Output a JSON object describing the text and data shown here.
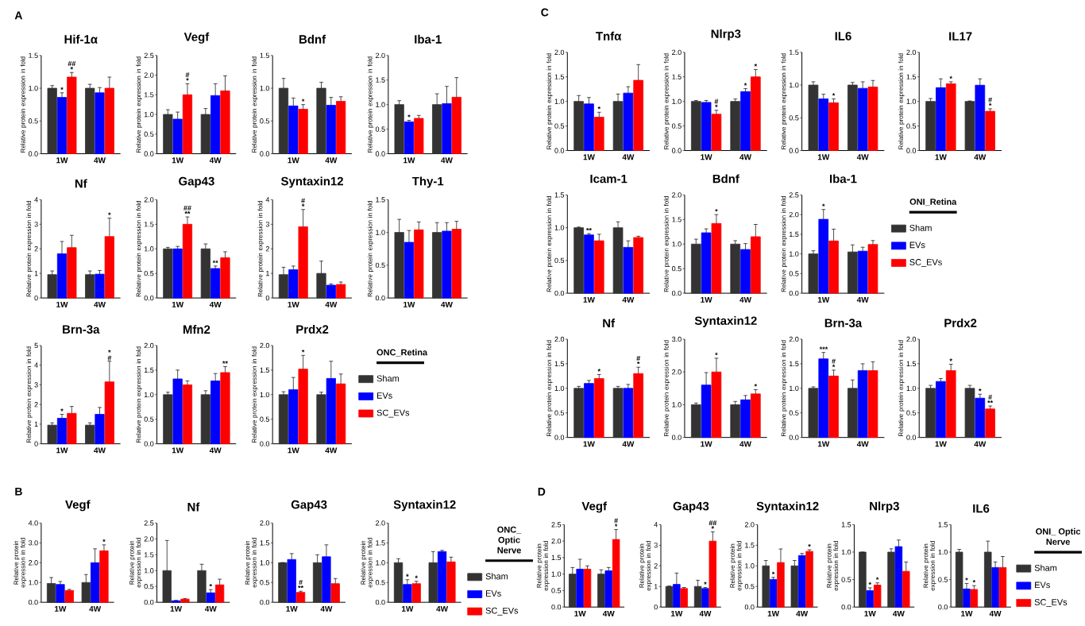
{
  "chart_data": [
    {
      "type": "bar",
      "title": "Hif-1α",
      "ylabel": "Relative protein expression in fold",
      "annotations": [
        "A"
      ],
      "categories": [
        "1W",
        "4W"
      ],
      "ylim": [
        0,
        1.5
      ],
      "yticks": [
        {
          "value": 0,
          "label": "0.0"
        },
        {
          "value": 0.5,
          "label": "0.5"
        },
        {
          "value": 1,
          "label": "1.0"
        },
        {
          "value": 1.5,
          "label": "1.5"
        }
      ],
      "series": [
        {
          "color": "#333333",
          "values": [
            1.0,
            1.0
          ],
          "errors": [
            0.04,
            0.06
          ]
        },
        {
          "color": "#0000ff",
          "values": [
            0.86,
            0.93
          ],
          "errors": [
            0.07,
            0.08
          ],
          "value_labels": [
            "*",
            null
          ]
        },
        {
          "color": "#ff0000",
          "values": [
            1.17,
            1.0
          ],
          "errors": [
            0.07,
            0.17
          ],
          "value_labels": [
            "## *",
            null
          ]
        }
      ]
    },
    {
      "type": "bar",
      "title": "Vegf",
      "ylabel": "Relative protein expression in fold",
      "categories": [
        "1W",
        "4W"
      ],
      "ylim": [
        0,
        2.5
      ],
      "yticks": [
        {
          "value": 0,
          "label": "0.0"
        },
        {
          "value": 0.5,
          "label": "0.5"
        },
        {
          "value": 1,
          "label": "1.0"
        },
        {
          "value": 1.5,
          "label": "1.5"
        },
        {
          "value": 2,
          "label": "2.0"
        },
        {
          "value": 2.5,
          "label": "2.5"
        }
      ],
      "series": [
        {
          "color": "#333333",
          "values": [
            1.0,
            1.0
          ],
          "errors": [
            0.12,
            0.15
          ]
        },
        {
          "color": "#0000ff",
          "values": [
            0.88,
            1.48
          ],
          "errors": [
            0.18,
            0.3
          ]
        },
        {
          "color": "#ff0000",
          "values": [
            1.5,
            1.6
          ],
          "errors": [
            0.28,
            0.38
          ],
          "value_labels": [
            "# *",
            null
          ]
        }
      ]
    },
    {
      "type": "bar",
      "title": "Bdnf",
      "ylabel": "Relative protein expression in fold",
      "categories": [
        "1W",
        "4W"
      ],
      "ylim": [
        0,
        1.5
      ],
      "yticks": [
        {
          "value": 0,
          "label": "0.0"
        },
        {
          "value": 0.5,
          "label": "0.5"
        },
        {
          "value": 1,
          "label": "1.0"
        },
        {
          "value": 1.5,
          "label": "1.5"
        }
      ],
      "series": [
        {
          "color": "#333333",
          "values": [
            1.0,
            1.0
          ],
          "errors": [
            0.15,
            0.09
          ]
        },
        {
          "color": "#0000ff",
          "values": [
            0.73,
            0.74
          ],
          "errors": [
            0.12,
            0.12
          ]
        },
        {
          "color": "#ff0000",
          "values": [
            0.68,
            0.8
          ],
          "errors": [
            0.07,
            0.07
          ],
          "value_labels": [
            "*",
            null
          ]
        }
      ]
    },
    {
      "type": "bar",
      "title": "Iba-1",
      "ylabel": "Relative protein expression in fold",
      "categories": [
        "1W",
        "4W"
      ],
      "ylim": [
        0,
        2.0
      ],
      "yticks": [
        {
          "value": 0,
          "label": "0.0"
        },
        {
          "value": 0.5,
          "label": "0.5"
        },
        {
          "value": 1,
          "label": "1.0"
        },
        {
          "value": 1.5,
          "label": "1.5"
        },
        {
          "value": 2,
          "label": "2.0"
        }
      ],
      "series": [
        {
          "color": "#333333",
          "values": [
            1.0,
            1.0
          ],
          "errors": [
            0.08,
            0.22
          ]
        },
        {
          "color": "#0000ff",
          "values": [
            0.65,
            1.02
          ],
          "errors": [
            0.03,
            0.35
          ],
          "value_labels": [
            "*",
            null
          ]
        },
        {
          "color": "#ff0000",
          "values": [
            0.72,
            1.15
          ],
          "errors": [
            0.06,
            0.4
          ]
        }
      ]
    },
    {
      "type": "bar",
      "title": "Nf",
      "ylabel": "Relative protein expression in fold",
      "categories": [
        "1W",
        "4W"
      ],
      "ylim": [
        0,
        4
      ],
      "yticks": [
        0,
        1,
        2,
        3,
        4
      ],
      "series": [
        {
          "color": "#333333",
          "values": [
            0.95,
            0.95
          ],
          "errors": [
            0.15,
            0.15
          ]
        },
        {
          "color": "#0000ff",
          "values": [
            1.8,
            0.97
          ],
          "errors": [
            0.5,
            0.15
          ]
        },
        {
          "color": "#ff0000",
          "values": [
            2.05,
            2.5
          ],
          "errors": [
            0.5,
            0.75
          ],
          "value_labels": [
            null,
            "*"
          ]
        }
      ]
    },
    {
      "type": "bar",
      "title": "Gap43",
      "ylabel": "Relative protein expression in fold",
      "categories": [
        "1W",
        "4W"
      ],
      "ylim": [
        0,
        2.0
      ],
      "yticks": [
        {
          "value": 0,
          "label": "0.0"
        },
        {
          "value": 0.5,
          "label": "0.5"
        },
        {
          "value": 1,
          "label": "1.0"
        },
        {
          "value": 1.5,
          "label": "1.5"
        },
        {
          "value": 2,
          "label": "2.0"
        }
      ],
      "series": [
        {
          "color": "#333333",
          "values": [
            1.0,
            1.0
          ],
          "errors": [
            0.03,
            0.1
          ]
        },
        {
          "color": "#0000ff",
          "values": [
            1.0,
            0.6
          ],
          "errors": [
            0.05,
            0.05
          ],
          "value_labels": [
            null,
            "**"
          ]
        },
        {
          "color": "#ff0000",
          "values": [
            1.5,
            0.82
          ],
          "errors": [
            0.15,
            0.12
          ],
          "value_labels": [
            "## **",
            null
          ]
        }
      ]
    },
    {
      "type": "bar",
      "title": "Syntaxin12",
      "ylabel": "Relative protein expression in fold",
      "categories": [
        "1W",
        "4W"
      ],
      "ylim": [
        0,
        4
      ],
      "yticks": [
        0,
        1,
        2,
        3,
        4
      ],
      "series": [
        {
          "color": "#333333",
          "values": [
            0.95,
            1.0
          ],
          "errors": [
            0.3,
            0.5
          ]
        },
        {
          "color": "#0000ff",
          "values": [
            1.15,
            0.52
          ],
          "errors": [
            0.15,
            0.05
          ]
        },
        {
          "color": "#ff0000",
          "values": [
            2.9,
            0.55
          ],
          "errors": [
            0.7,
            0.1
          ],
          "value_labels": [
            "# *",
            null
          ]
        }
      ]
    },
    {
      "type": "bar",
      "title": "Thy-1",
      "ylabel": "Relative protein expression in fold",
      "categories": [
        "1W",
        "4W"
      ],
      "ylim": [
        0,
        1.5
      ],
      "yticks": [
        {
          "value": 0,
          "label": "0.0"
        },
        {
          "value": 0.5,
          "label": "0.5"
        },
        {
          "value": 1,
          "label": "1.0"
        },
        {
          "value": 1.5,
          "label": "1.5"
        }
      ],
      "series": [
        {
          "color": "#333333",
          "values": [
            1.0,
            1.0
          ],
          "errors": [
            0.2,
            0.15
          ]
        },
        {
          "color": "#0000ff",
          "values": [
            0.85,
            1.02
          ],
          "errors": [
            0.18,
            0.13
          ]
        },
        {
          "color": "#ff0000",
          "values": [
            1.04,
            1.05
          ],
          "errors": [
            0.12,
            0.12
          ]
        }
      ]
    },
    {
      "type": "bar",
      "title": "Brn-3a",
      "ylabel": "Relative protein expression in fold",
      "categories": [
        "1W",
        "4W"
      ],
      "ylim": [
        0,
        5
      ],
      "yticks": [
        0,
        1,
        2,
        3,
        4,
        5
      ],
      "series": [
        {
          "color": "#333333",
          "values": [
            0.95,
            0.95
          ],
          "errors": [
            0.12,
            0.12
          ]
        },
        {
          "color": "#0000ff",
          "values": [
            1.3,
            1.5
          ],
          "errors": [
            0.2,
            0.35
          ],
          "value_labels": [
            "*",
            null
          ]
        },
        {
          "color": "#ff0000",
          "values": [
            1.55,
            3.15
          ],
          "errors": [
            0.35,
            1.05
          ],
          "value_labels": [
            null,
            "* #"
          ]
        }
      ]
    },
    {
      "type": "bar",
      "title": "Mfn2",
      "ylabel": "Relative protein expression in fold",
      "categories": [
        "1W",
        "4W"
      ],
      "ylim": [
        0,
        2.0
      ],
      "yticks": [
        {
          "value": 0,
          "label": "0.0"
        },
        {
          "value": 0.5,
          "label": "0.5"
        },
        {
          "value": 1,
          "label": "1.0"
        },
        {
          "value": 1.5,
          "label": "1.5"
        },
        {
          "value": 2,
          "label": "2.0"
        }
      ],
      "series": [
        {
          "color": "#333333",
          "values": [
            1.0,
            1.0
          ],
          "errors": [
            0.05,
            0.08
          ]
        },
        {
          "color": "#0000ff",
          "values": [
            1.32,
            1.28
          ],
          "errors": [
            0.18,
            0.15
          ]
        },
        {
          "color": "#ff0000",
          "values": [
            1.2,
            1.45
          ],
          "errors": [
            0.08,
            0.12
          ],
          "value_labels": [
            null,
            "**"
          ]
        }
      ]
    },
    {
      "type": "bar",
      "title": "Prdx2",
      "ylabel": "Relative protein expression in fold",
      "categories": [
        "1W",
        "4W"
      ],
      "ylim": [
        0,
        2.0
      ],
      "yticks": [
        {
          "value": 0,
          "label": "0.0"
        },
        {
          "value": 0.5,
          "label": "0.5"
        },
        {
          "value": 1,
          "label": "1.0"
        },
        {
          "value": 1.5,
          "label": "1.5"
        },
        {
          "value": 2,
          "label": "2.0"
        }
      ],
      "legend": "right",
      "legend_title": "ONC_Retina",
      "series": [
        {
          "name": "Sham",
          "color": "#333333",
          "values": [
            1.0,
            1.0
          ],
          "errors": [
            0.06,
            0.05
          ]
        },
        {
          "name": "EVs",
          "color": "#0000ff",
          "values": [
            1.1,
            1.33
          ],
          "errors": [
            0.25,
            0.35
          ]
        },
        {
          "name": "SC_EVs",
          "color": "#ff0000",
          "values": [
            1.52,
            1.22
          ],
          "errors": [
            0.28,
            0.2
          ],
          "value_labels": [
            "*",
            null
          ]
        }
      ]
    },
    {
      "type": "bar",
      "title": "Vegf",
      "ylabel": "Relative protein expression in fold",
      "annotations": [
        "B"
      ],
      "categories": [
        "1W",
        "4W"
      ],
      "ylim": [
        0,
        4.0
      ],
      "yticks": [
        {
          "value": 0,
          "label": "0.0"
        },
        {
          "value": 1,
          "label": "1.0"
        },
        {
          "value": 2,
          "label": "2.0"
        },
        {
          "value": 3,
          "label": "3.0"
        },
        {
          "value": 4,
          "label": "4.0"
        }
      ],
      "series": [
        {
          "color": "#333333",
          "values": [
            0.95,
            1.0
          ],
          "errors": [
            0.3,
            0.4
          ]
        },
        {
          "color": "#0000ff",
          "values": [
            0.9,
            2.0
          ],
          "errors": [
            0.15,
            0.7
          ]
        },
        {
          "color": "#ff0000",
          "values": [
            0.6,
            2.6
          ],
          "errors": [
            0.05,
            0.3
          ],
          "value_labels": [
            null,
            "*"
          ]
        }
      ]
    },
    {
      "type": "bar",
      "title": "Nf",
      "ylabel": "Relative protein expression in fold",
      "categories": [
        "1W",
        "4W"
      ],
      "ylim": [
        0,
        2.5
      ],
      "yticks": [
        {
          "value": 0,
          "label": "0.0"
        },
        {
          "value": 0.5,
          "label": "0.5"
        },
        {
          "value": 1,
          "label": "1.0"
        },
        {
          "value": 1.5,
          "label": "1.5"
        },
        {
          "value": 2,
          "label": "2.0"
        },
        {
          "value": 2.5,
          "label": "2.5"
        }
      ],
      "series": [
        {
          "color": "#333333",
          "values": [
            1.0,
            1.0
          ],
          "errors": [
            0.95,
            0.2
          ]
        },
        {
          "color": "#0000ff",
          "values": [
            0.05,
            0.3
          ],
          "errors": [
            0.01,
            0.1
          ],
          "value_labels": [
            null,
            "*"
          ]
        },
        {
          "color": "#ff0000",
          "values": [
            0.1,
            0.55
          ],
          "errors": [
            0.02,
            0.18
          ]
        }
      ]
    },
    {
      "type": "bar",
      "title": "Gap43",
      "ylabel": "Relative protein expression in fold",
      "categories": [
        "1W",
        "4W"
      ],
      "ylim": [
        0,
        2.0
      ],
      "yticks": [
        {
          "value": 0,
          "label": "0.0"
        },
        {
          "value": 0.5,
          "label": "0.5"
        },
        {
          "value": 1,
          "label": "1.0"
        },
        {
          "value": 1.5,
          "label": "1.5"
        },
        {
          "value": 2,
          "label": "2.0"
        }
      ],
      "series": [
        {
          "color": "#333333",
          "values": [
            1.0,
            1.0
          ],
          "errors": [
            0.0,
            0.2
          ]
        },
        {
          "color": "#0000ff",
          "values": [
            1.08,
            1.15
          ],
          "errors": [
            0.15,
            0.3
          ]
        },
        {
          "color": "#ff0000",
          "values": [
            0.25,
            0.47
          ],
          "errors": [
            0.03,
            0.13
          ],
          "value_labels": [
            "# **",
            null
          ]
        }
      ]
    },
    {
      "type": "bar",
      "title": "Syntaxin12",
      "ylabel": "Relative protein expression in fold",
      "categories": [
        "1W",
        "4W"
      ],
      "ylim": [
        0,
        2.0
      ],
      "yticks": [
        {
          "value": 0,
          "label": "0.0"
        },
        {
          "value": 0.5,
          "label": "0.5"
        },
        {
          "value": 1,
          "label": "1.0"
        },
        {
          "value": 1.5,
          "label": "1.5"
        },
        {
          "value": 2,
          "label": "2.0"
        }
      ],
      "legend": "right",
      "legend_title": "ONC_ Optic Nerve",
      "series": [
        {
          "name": "Sham",
          "color": "#333333",
          "values": [
            1.0,
            1.0
          ],
          "errors": [
            0.1,
            0.28
          ]
        },
        {
          "name": "EVs",
          "color": "#0000ff",
          "values": [
            0.45,
            1.28
          ],
          "errors": [
            0.12,
            0.03
          ],
          "value_labels": [
            "*",
            null
          ]
        },
        {
          "name": "SC_EVs",
          "color": "#ff0000",
          "values": [
            0.47,
            1.02
          ],
          "errors": [
            0.06,
            0.12
          ],
          "value_labels": [
            "*",
            null
          ]
        }
      ]
    },
    {
      "type": "bar",
      "title": "Tnfα",
      "ylabel": "Relative protein expression in fold",
      "annotations": [
        "C"
      ],
      "categories": [
        "1W",
        "4W"
      ],
      "ylim": [
        0,
        2.0
      ],
      "yticks": [
        {
          "value": 0,
          "label": "0.0"
        },
        {
          "value": 0.5,
          "label": "0.5"
        },
        {
          "value": 1,
          "label": "1.0"
        },
        {
          "value": 1.5,
          "label": "1.5"
        },
        {
          "value": 2,
          "label": "2.0"
        }
      ],
      "series": [
        {
          "color": "#333333",
          "values": [
            1.0,
            1.0
          ],
          "errors": [
            0.12,
            0.15
          ]
        },
        {
          "color": "#0000ff",
          "values": [
            0.95,
            1.17
          ],
          "errors": [
            0.13,
            0.13
          ]
        },
        {
          "color": "#ff0000",
          "values": [
            0.68,
            1.43
          ],
          "errors": [
            0.1,
            0.32
          ],
          "value_labels": [
            "*",
            null
          ]
        }
      ]
    },
    {
      "type": "bar",
      "title": "Nlrp3",
      "ylabel": "Relative protein expression in fold",
      "categories": [
        "1W",
        "4W"
      ],
      "ylim": [
        0,
        2.0
      ],
      "yticks": [
        {
          "value": 0,
          "label": "0.0"
        },
        {
          "value": 0.5,
          "label": "0.5"
        },
        {
          "value": 1,
          "label": "1.0"
        },
        {
          "value": 1.5,
          "label": "1.5"
        },
        {
          "value": 2,
          "label": "2.0"
        }
      ],
      "series": [
        {
          "color": "#333333",
          "values": [
            1.0,
            1.0
          ],
          "errors": [
            0.02,
            0.05
          ]
        },
        {
          "color": "#0000ff",
          "values": [
            0.98,
            1.2
          ],
          "errors": [
            0.04,
            0.06
          ],
          "value_labels": [
            null,
            "*"
          ]
        },
        {
          "color": "#ff0000",
          "values": [
            0.74,
            1.5
          ],
          "errors": [
            0.08,
            0.15
          ],
          "value_labels": [
            "# *",
            "*"
          ]
        }
      ]
    },
    {
      "type": "bar",
      "title": "IL6",
      "ylabel": "Relative protein expression in fold",
      "categories": [
        "1W",
        "4W"
      ],
      "ylim": [
        0,
        1.5
      ],
      "yticks": [
        {
          "value": 0,
          "label": "0.0"
        },
        {
          "value": 0.5,
          "label": "0.5"
        },
        {
          "value": 1,
          "label": "1.0"
        },
        {
          "value": 1.5,
          "label": "1.5"
        }
      ],
      "series": [
        {
          "color": "#333333",
          "values": [
            1.0,
            1.0
          ],
          "errors": [
            0.05,
            0.04
          ]
        },
        {
          "color": "#0000ff",
          "values": [
            0.79,
            0.95
          ],
          "errors": [
            0.07,
            0.1
          ]
        },
        {
          "color": "#ff0000",
          "values": [
            0.73,
            0.97
          ],
          "errors": [
            0.06,
            0.1
          ],
          "value_labels": [
            "*",
            null
          ]
        }
      ]
    },
    {
      "type": "bar",
      "title": "IL17",
      "ylabel": "Relative protein expression in fold",
      "categories": [
        "1W",
        "4W"
      ],
      "ylim": [
        0,
        2.0
      ],
      "yticks": [
        {
          "value": 0,
          "label": "0.0"
        },
        {
          "value": 0.5,
          "label": "0.5"
        },
        {
          "value": 1,
          "label": "1.0"
        },
        {
          "value": 1.5,
          "label": "1.5"
        },
        {
          "value": 2,
          "label": "2.0"
        }
      ],
      "series": [
        {
          "color": "#333333",
          "values": [
            1.0,
            1.0
          ],
          "errors": [
            0.06,
            0.01
          ]
        },
        {
          "color": "#0000ff",
          "values": [
            1.28,
            1.33
          ],
          "errors": [
            0.18,
            0.13
          ]
        },
        {
          "color": "#ff0000",
          "values": [
            1.36,
            0.8
          ],
          "errors": [
            0.04,
            0.05
          ],
          "value_labels": [
            "*",
            "# *"
          ]
        }
      ]
    },
    {
      "type": "bar",
      "title": "Icam-1",
      "ylabel": "Relative protein expression in fold",
      "categories": [
        "1W",
        "4W"
      ],
      "ylim": [
        0,
        1.5
      ],
      "yticks": [
        {
          "value": 0,
          "label": "0.0"
        },
        {
          "value": 0.5,
          "label": "0.5"
        },
        {
          "value": 1,
          "label": "1.0"
        },
        {
          "value": 1.5,
          "label": "1.5"
        }
      ],
      "series": [
        {
          "color": "#333333",
          "values": [
            1.0,
            1.0
          ],
          "errors": [
            0.01,
            0.09
          ]
        },
        {
          "color": "#0000ff",
          "values": [
            0.89,
            0.7
          ],
          "errors": [
            0.02,
            0.1
          ],
          "value_labels": [
            "**",
            null
          ]
        },
        {
          "color": "#ff0000",
          "values": [
            0.8,
            0.85
          ],
          "errors": [
            0.1,
            0.02
          ]
        }
      ]
    },
    {
      "type": "bar",
      "title": "Bdnf",
      "ylabel": "Relative protein expression in fold",
      "categories": [
        "1W",
        "4W"
      ],
      "ylim": [
        0,
        2.0
      ],
      "yticks": [
        {
          "value": 0,
          "label": "0.0"
        },
        {
          "value": 0.5,
          "label": "0.5"
        },
        {
          "value": 1,
          "label": "1.0"
        },
        {
          "value": 1.5,
          "label": "1.5"
        },
        {
          "value": 2,
          "label": "2.0"
        }
      ],
      "series": [
        {
          "color": "#333333",
          "values": [
            1.0,
            1.0
          ],
          "errors": [
            0.1,
            0.07
          ]
        },
        {
          "color": "#0000ff",
          "values": [
            1.23,
            0.89
          ],
          "errors": [
            0.08,
            0.12
          ]
        },
        {
          "color": "#ff0000",
          "values": [
            1.42,
            1.15
          ],
          "errors": [
            0.18,
            0.25
          ],
          "value_labels": [
            "*",
            null
          ]
        }
      ]
    },
    {
      "type": "bar",
      "title": "Iba-1",
      "ylabel": "Relative protein expression in fold",
      "categories": [
        "1W",
        "4W"
      ],
      "ylim": [
        0,
        2.5
      ],
      "yticks": [
        {
          "value": 0,
          "label": "0.0"
        },
        {
          "value": 0.5,
          "label": "0.5"
        },
        {
          "value": 1,
          "label": "1.0"
        },
        {
          "value": 1.5,
          "label": "1.5"
        },
        {
          "value": 2,
          "label": "2.0"
        },
        {
          "value": 2.5,
          "label": "2.5"
        }
      ],
      "legend": "right",
      "legend_title": "ONI_Retina",
      "series": [
        {
          "name": "Sham",
          "color": "#333333",
          "values": [
            1.0,
            1.05
          ],
          "errors": [
            0.08,
            0.18
          ]
        },
        {
          "name": "EVs",
          "color": "#0000ff",
          "values": [
            1.88,
            1.07
          ],
          "errors": [
            0.25,
            0.1
          ],
          "value_labels": [
            "*",
            null
          ]
        },
        {
          "name": "SC_EVs",
          "color": "#ff0000",
          "values": [
            1.33,
            1.24
          ],
          "errors": [
            0.3,
            0.1
          ]
        }
      ]
    },
    {
      "type": "bar",
      "title": "Nf",
      "ylabel": "Relative protein expression in fold",
      "categories": [
        "1W",
        "4W"
      ],
      "ylim": [
        0,
        2.0
      ],
      "yticks": [
        {
          "value": 0,
          "label": "0.0"
        },
        {
          "value": 0.5,
          "label": "0.5"
        },
        {
          "value": 1,
          "label": "1.0"
        },
        {
          "value": 1.5,
          "label": "1.5"
        },
        {
          "value": 2,
          "label": "2.0"
        }
      ],
      "series": [
        {
          "color": "#333333",
          "values": [
            1.0,
            1.0
          ],
          "errors": [
            0.04,
            0.04
          ]
        },
        {
          "color": "#0000ff",
          "values": [
            1.1,
            1.0
          ],
          "errors": [
            0.06,
            0.08
          ]
        },
        {
          "color": "#ff0000",
          "values": [
            1.2,
            1.3
          ],
          "errors": [
            0.08,
            0.13
          ],
          "value_labels": [
            "*",
            "# *"
          ]
        }
      ]
    },
    {
      "type": "bar",
      "title": "Syntaxin12",
      "ylabel": "Relative protein expression in fold",
      "categories": [
        "1W",
        "4W"
      ],
      "ylim": [
        0,
        3.0
      ],
      "yticks": [
        {
          "value": 0,
          "label": "0.0"
        },
        {
          "value": 1,
          "label": "1.0"
        },
        {
          "value": 2,
          "label": "2.0"
        },
        {
          "value": 3,
          "label": "3.0"
        }
      ],
      "series": [
        {
          "color": "#333333",
          "values": [
            1.0,
            1.0
          ],
          "errors": [
            0.05,
            0.1
          ]
        },
        {
          "color": "#0000ff",
          "values": [
            1.6,
            1.15
          ],
          "errors": [
            0.38,
            0.13
          ]
        },
        {
          "color": "#ff0000",
          "values": [
            2.0,
            1.33
          ],
          "errors": [
            0.42,
            0.13
          ],
          "value_labels": [
            "*",
            "*"
          ]
        }
      ]
    },
    {
      "type": "bar",
      "title": "Brn-3a",
      "ylabel": "Relative protein expression in fold",
      "categories": [
        "1W",
        "4W"
      ],
      "ylim": [
        0,
        2.0
      ],
      "yticks": [
        {
          "value": 0,
          "label": "0.0"
        },
        {
          "value": 0.5,
          "label": "0.5"
        },
        {
          "value": 1,
          "label": "1.0"
        },
        {
          "value": 1.5,
          "label": "1.5"
        },
        {
          "value": 2,
          "label": "2.0"
        }
      ],
      "series": [
        {
          "color": "#333333",
          "values": [
            1.0,
            1.0
          ],
          "errors": [
            0.03,
            0.17
          ]
        },
        {
          "color": "#0000ff",
          "values": [
            1.6,
            1.36
          ],
          "errors": [
            0.13,
            0.14
          ],
          "value_labels": [
            "***",
            null
          ]
        },
        {
          "color": "#ff0000",
          "values": [
            1.25,
            1.36
          ],
          "errors": [
            0.12,
            0.18
          ],
          "value_labels": [
            "# *",
            null
          ]
        }
      ]
    },
    {
      "type": "bar",
      "title": "Prdx2",
      "ylabel": "Relative protein expression in fold",
      "categories": [
        "1W",
        "4W"
      ],
      "ylim": [
        0,
        2.0
      ],
      "yticks": [
        {
          "value": 0,
          "label": "0.0"
        },
        {
          "value": 0.5,
          "label": "0.5"
        },
        {
          "value": 1,
          "label": "1.0"
        },
        {
          "value": 1.5,
          "label": "1.5"
        },
        {
          "value": 2,
          "label": "2.0"
        }
      ],
      "series": [
        {
          "color": "#333333",
          "values": [
            1.0,
            1.0
          ],
          "errors": [
            0.06,
            0.06
          ]
        },
        {
          "color": "#0000ff",
          "values": [
            1.14,
            0.8
          ],
          "errors": [
            0.06,
            0.08
          ],
          "value_labels": [
            null,
            "*"
          ]
        },
        {
          "color": "#ff0000",
          "values": [
            1.36,
            0.58
          ],
          "errors": [
            0.13,
            0.06
          ],
          "value_labels": [
            "*",
            "# **"
          ]
        }
      ]
    },
    {
      "type": "bar",
      "title": "Vegf",
      "ylabel": "Relative protein expression in fold",
      "annotations": [
        "D"
      ],
      "categories": [
        "1W",
        "4W"
      ],
      "ylim": [
        0,
        2.5
      ],
      "yticks": [
        {
          "value": 0,
          "label": "0.0"
        },
        {
          "value": 0.5,
          "label": "0.5"
        },
        {
          "value": 1,
          "label": "1.0"
        },
        {
          "value": 1.5,
          "label": "1.5"
        },
        {
          "value": 2,
          "label": "2.0"
        },
        {
          "value": 2.5,
          "label": "2.5"
        }
      ],
      "series": [
        {
          "color": "#333333",
          "values": [
            1.0,
            1.0
          ],
          "errors": [
            0.2,
            0.13
          ]
        },
        {
          "color": "#0000ff",
          "values": [
            1.15,
            1.1
          ],
          "errors": [
            0.3,
            0.1
          ]
        },
        {
          "color": "#ff0000",
          "values": [
            1.15,
            2.05
          ],
          "errors": [
            0.1,
            0.3
          ],
          "value_labels": [
            null,
            "# *"
          ]
        }
      ]
    },
    {
      "type": "bar",
      "title": "Gap43",
      "ylabel": "Relative protein expression in fold",
      "categories": [
        "1W",
        "4W"
      ],
      "ylim": [
        0,
        4
      ],
      "yticks": [
        0,
        1,
        2,
        3,
        4
      ],
      "series": [
        {
          "color": "#333333",
          "values": [
            1.0,
            1.0
          ],
          "errors": [
            0.02,
            0.3
          ]
        },
        {
          "color": "#0000ff",
          "values": [
            1.1,
            0.9
          ],
          "errors": [
            0.55,
            0.05
          ],
          "value_labels": [
            null,
            "*"
          ]
        },
        {
          "color": "#ff0000",
          "values": [
            0.9,
            3.2
          ],
          "errors": [
            0.05,
            0.45
          ],
          "value_labels": [
            null,
            "## *"
          ]
        }
      ]
    },
    {
      "type": "bar",
      "title": "Syntaxin12",
      "ylabel": "Relative protein expression in fold",
      "categories": [
        "1W",
        "4W"
      ],
      "ylim": [
        0,
        2.0
      ],
      "yticks": [
        {
          "value": 0,
          "label": "0.0"
        },
        {
          "value": 0.5,
          "label": "0.5"
        },
        {
          "value": 1,
          "label": "1.0"
        },
        {
          "value": 1.5,
          "label": "1.5"
        },
        {
          "value": 2,
          "label": "2.0"
        }
      ],
      "series": [
        {
          "color": "#333333",
          "values": [
            1.0,
            1.0
          ],
          "errors": [
            0.13,
            0.13
          ]
        },
        {
          "color": "#0000ff",
          "values": [
            0.67,
            1.25
          ],
          "errors": [
            0.05,
            0.05
          ],
          "value_labels": [
            "*",
            null
          ]
        },
        {
          "color": "#ff0000",
          "values": [
            1.08,
            1.35
          ],
          "errors": [
            0.33,
            0.04
          ],
          "value_labels": [
            null,
            "*"
          ]
        }
      ]
    },
    {
      "type": "bar",
      "title": "Nlrp3",
      "ylabel": "Relative protein expression in fold",
      "categories": [
        "1W",
        "4W"
      ],
      "ylim": [
        0,
        1.5
      ],
      "yticks": [
        {
          "value": 0,
          "label": "0.0"
        },
        {
          "value": 0.5,
          "label": "0.5"
        },
        {
          "value": 1,
          "label": "1.0"
        },
        {
          "value": 1.5,
          "label": "1.5"
        }
      ],
      "series": [
        {
          "color": "#333333",
          "values": [
            1.0,
            1.0
          ],
          "errors": [
            0.0,
            0.06
          ]
        },
        {
          "color": "#0000ff",
          "values": [
            0.3,
            1.1
          ],
          "errors": [
            0.05,
            0.12
          ],
          "value_labels": [
            "*",
            null
          ]
        },
        {
          "color": "#ff0000",
          "values": [
            0.4,
            0.65
          ],
          "errors": [
            0.04,
            0.17
          ],
          "value_labels": [
            "*",
            null
          ]
        }
      ]
    },
    {
      "type": "bar",
      "title": "IL6",
      "ylabel": "Relative protein expression in fold",
      "categories": [
        "1W",
        "4W"
      ],
      "ylim": [
        0,
        1.5
      ],
      "yticks": [
        {
          "value": 0,
          "label": "0.0"
        },
        {
          "value": 0.5,
          "label": "0.5"
        },
        {
          "value": 1,
          "label": "1.0"
        },
        {
          "value": 1.5,
          "label": "1.5"
        }
      ],
      "legend": "right",
      "legend_title": "ONI_ Optic Nerve",
      "series": [
        {
          "name": "Sham",
          "color": "#333333",
          "values": [
            1.0,
            1.0
          ],
          "errors": [
            0.05,
            0.2
          ]
        },
        {
          "name": "EVs",
          "color": "#0000ff",
          "values": [
            0.33,
            0.72
          ],
          "errors": [
            0.1,
            0.1
          ],
          "value_labels": [
            "*",
            null
          ]
        },
        {
          "name": "SC_EVs",
          "color": "#ff0000",
          "values": [
            0.32,
            0.72
          ],
          "errors": [
            0.07,
            0.2
          ],
          "value_labels": [
            "*",
            null
          ]
        }
      ]
    }
  ]
}
